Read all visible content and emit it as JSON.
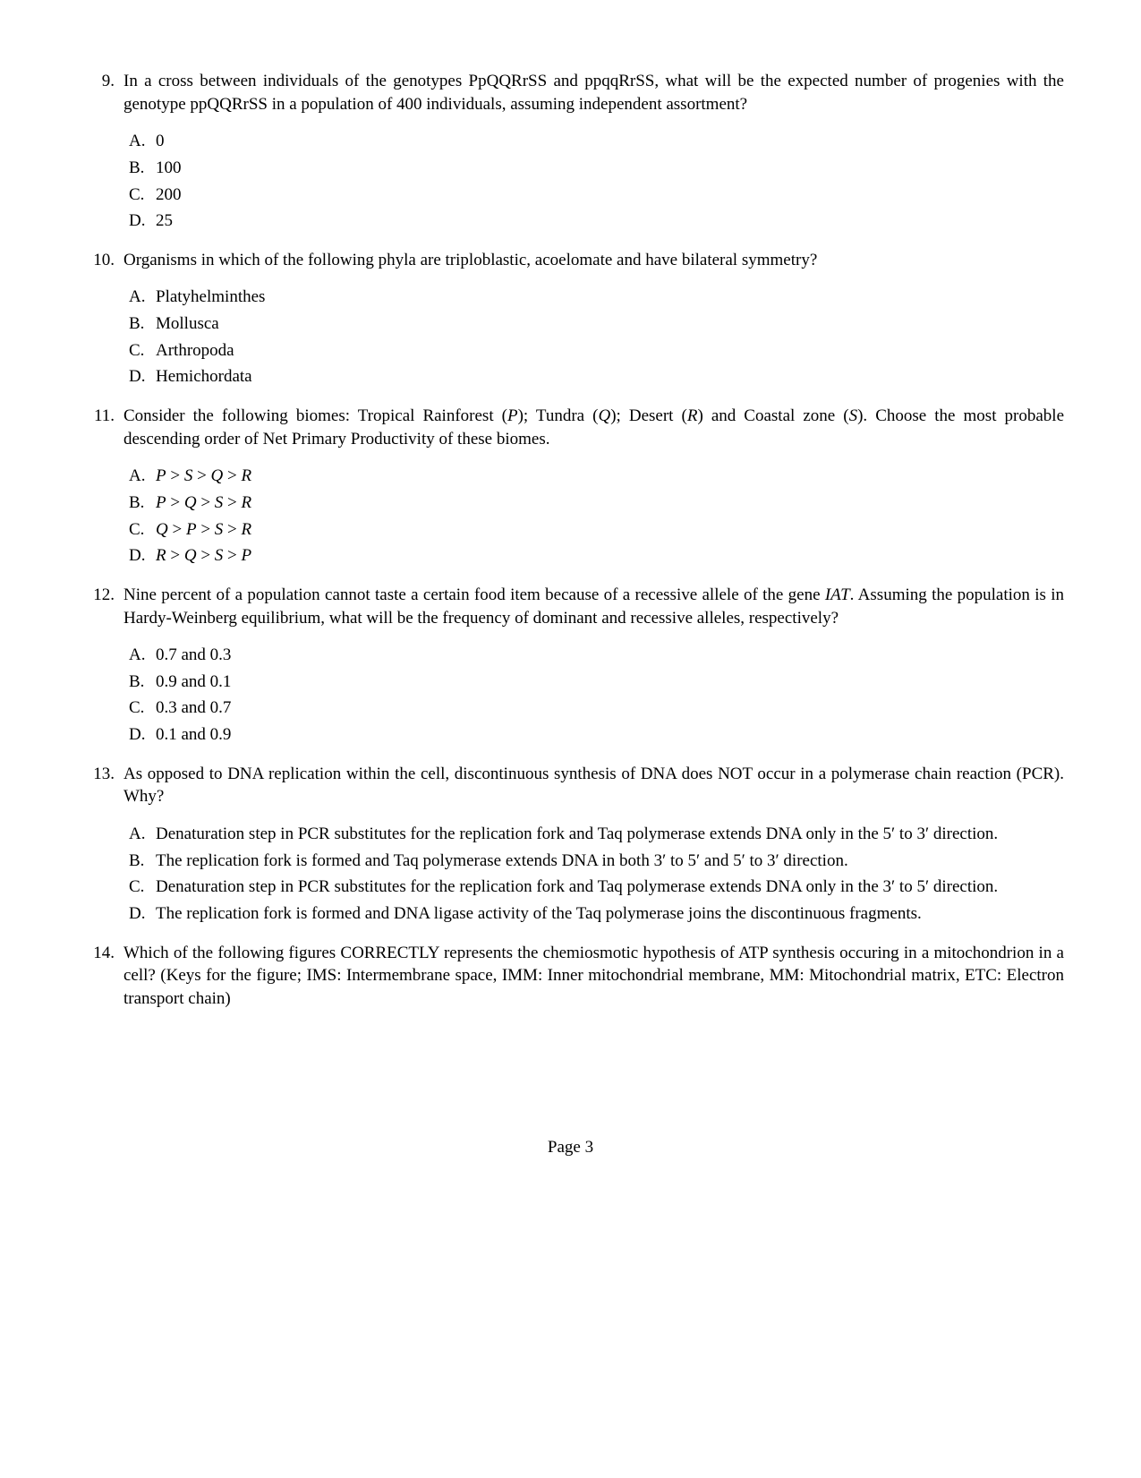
{
  "page_number": "Page 3",
  "font": {
    "family": "Times New Roman",
    "body_size_pt": 14
  },
  "colors": {
    "text": "#000000",
    "background": "#ffffff"
  },
  "questions": [
    {
      "number": "9.",
      "text": "In a cross between individuals of the genotypes PpQQRrSS and ppqqRrSS, what will be the expected number of progenies with the genotype ppQQRrSS in a population of 400 individuals, assuming independent assortment?",
      "choices": [
        {
          "label": "A.",
          "text": "0"
        },
        {
          "label": "B.",
          "text": "100"
        },
        {
          "label": "C.",
          "text": "200"
        },
        {
          "label": "D.",
          "text": "25"
        }
      ]
    },
    {
      "number": "10.",
      "text": "Organisms in which of the following phyla are triploblastic, acoelomate and have bilateral symmetry?",
      "choices": [
        {
          "label": "A.",
          "text": "Platyhelminthes"
        },
        {
          "label": "B.",
          "text": "Mollusca"
        },
        {
          "label": "C.",
          "text": "Arthropoda"
        },
        {
          "label": "D.",
          "text": "Hemichordata"
        }
      ]
    },
    {
      "number": "11.",
      "text_html": "Consider the following biomes: Tropical Rainforest (<span class=\"italic\">P</span>); Tundra (<span class=\"italic\">Q</span>); Desert (<span class=\"italic\">R</span>) and Coastal zone (<span class=\"italic\">S</span>). Choose the most probable descending order of Net Primary Productivity of these biomes.",
      "choices": [
        {
          "label": "A.",
          "text_html": "<span class=\"italic\">P</span> > <span class=\"italic\">S</span> > <span class=\"italic\">Q</span> > <span class=\"italic\">R</span>"
        },
        {
          "label": "B.",
          "text_html": "<span class=\"italic\">P</span> > <span class=\"italic\">Q</span> > <span class=\"italic\">S</span> > <span class=\"italic\">R</span>"
        },
        {
          "label": "C.",
          "text_html": "<span class=\"italic\">Q</span> > <span class=\"italic\">P</span> > <span class=\"italic\">S</span> > <span class=\"italic\">R</span>"
        },
        {
          "label": "D.",
          "text_html": "<span class=\"italic\">R</span> > <span class=\"italic\">Q</span> > <span class=\"italic\">S</span> > <span class=\"italic\">P</span>"
        }
      ]
    },
    {
      "number": "12.",
      "text_html": "Nine percent of a population cannot taste a certain food item because of a recessive allele of the gene <span class=\"italic\">IAT</span>. Assuming the population is in Hardy-Weinberg equilibrium, what will be the frequency of dominant and recessive alleles, respectively?",
      "choices": [
        {
          "label": "A.",
          "text": "0.7 and 0.3"
        },
        {
          "label": "B.",
          "text": "0.9 and 0.1"
        },
        {
          "label": "C.",
          "text": "0.3 and 0.7"
        },
        {
          "label": "D.",
          "text": "0.1 and 0.9"
        }
      ]
    },
    {
      "number": "13.",
      "text": "As opposed to DNA replication within the cell, discontinuous synthesis of DNA does NOT occur in a polymerase chain reaction (PCR). Why?",
      "choices": [
        {
          "label": "A.",
          "text": "Denaturation step in PCR substitutes for the replication fork and Taq polymerase extends DNA only in the 5′ to 3′ direction."
        },
        {
          "label": "B.",
          "text": "The replication fork is formed and Taq polymerase extends DNA in both 3′ to 5′ and 5′ to 3′ direction."
        },
        {
          "label": "C.",
          "text": "Denaturation step in PCR substitutes for the replication fork and Taq polymerase extends DNA only in the 3′ to 5′ direction."
        },
        {
          "label": "D.",
          "text": "The replication fork is formed and DNA ligase activity of the Taq polymerase joins the discontinuous fragments."
        }
      ]
    },
    {
      "number": "14.",
      "text": "Which of the following figures CORRECTLY represents the chemiosmotic hypothesis of ATP synthesis occuring in a mitochondrion in a cell? (Keys for the figure; IMS: Intermembrane space, IMM: Inner mitochondrial membrane, MM: Mitochondrial matrix, ETC: Electron transport chain)",
      "choices": []
    }
  ]
}
